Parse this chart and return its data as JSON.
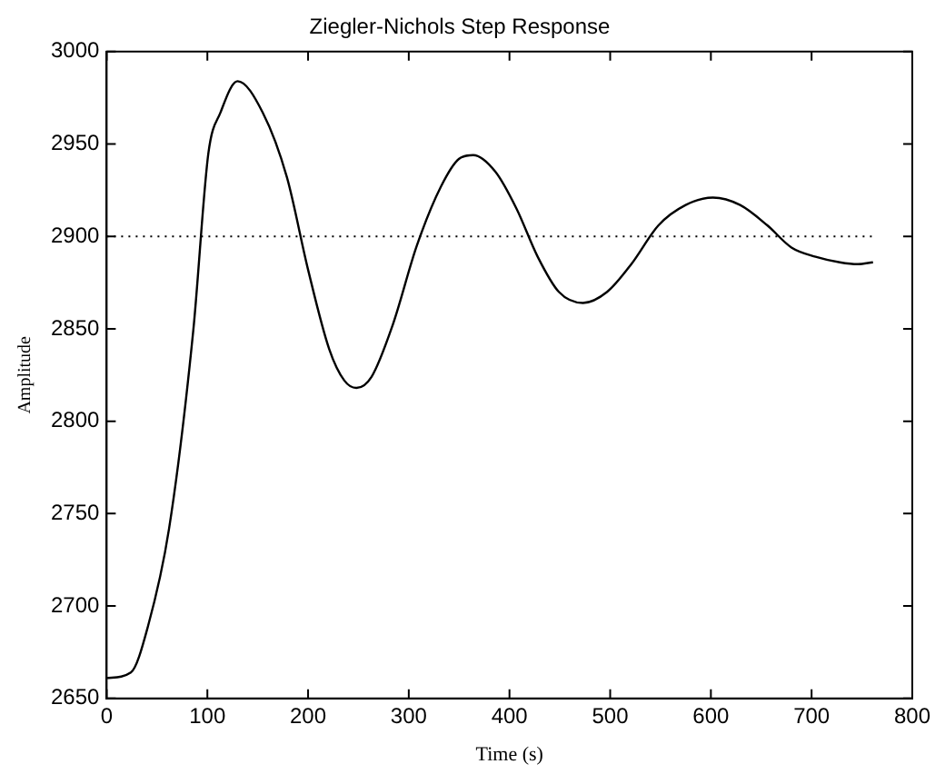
{
  "chart_data": {
    "type": "line",
    "title": "Ziegler-Nichols Step Response",
    "xlabel": "Time (s)",
    "ylabel": "Amplitude",
    "xlim": [
      0,
      800
    ],
    "xticks": [
      0,
      100,
      200,
      300,
      400,
      500,
      600,
      700,
      800
    ],
    "ylim": [
      2650,
      3000
    ],
    "yticks": [
      2650,
      2700,
      2750,
      2800,
      2850,
      2900,
      2950,
      3000
    ],
    "grid": false,
    "legend": false,
    "marker": "none",
    "line_style": "solid",
    "ref_lines": [
      {
        "axis": "y",
        "value": 2900,
        "line_style": "dotted",
        "color": "#000000"
      }
    ],
    "series": [
      {
        "color": "#000000",
        "x": [
          0,
          24,
          41,
          62,
          86,
          101,
          113,
          130,
          155,
          179,
          200,
          221,
          236,
          248,
          263,
          284,
          308,
          332,
          350,
          364,
          386,
          407,
          428,
          449,
          473,
          497,
          521,
          548,
          575,
          602,
          629,
          656,
          680,
          704,
          728,
          746,
          761
        ],
        "values": [
          2661,
          2664,
          2689,
          2742,
          2849,
          2945,
          2967,
          2984,
          2967,
          2932,
          2882,
          2839,
          2822,
          2818,
          2824,
          2852,
          2895,
          2927,
          2942,
          2944,
          2935,
          2915,
          2889,
          2870,
          2864,
          2870,
          2885,
          2906,
          2917,
          2921,
          2917,
          2906,
          2894,
          2889,
          2886,
          2885,
          2886
        ]
      }
    ]
  }
}
